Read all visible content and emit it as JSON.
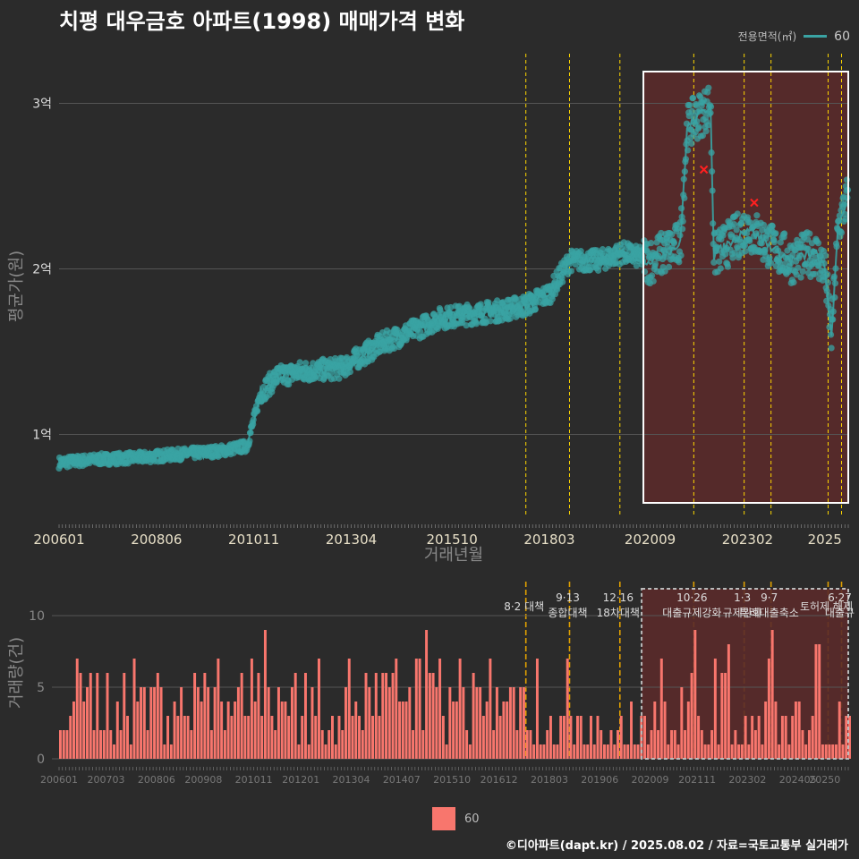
{
  "title": "치평 대우금호 아파트(1998) 매매가격 변화",
  "caption": "©디아파트(dapt.kr) / 2025.08.02 / 자료=국토교통부 실거래가",
  "legend_top": {
    "title": "전용면적(㎡)",
    "series": "60"
  },
  "legend_bottom": {
    "series": "60"
  },
  "colors": {
    "price": "#3aa3a3",
    "volume": "#f8766d",
    "policy": "#ffd700",
    "highlight": "#5a2a2a",
    "background": "#2b2b2b"
  },
  "chart_data": [
    {
      "type": "scatter",
      "xlabel": "거래년월",
      "ylabel": "평균가(원)",
      "x_range": [
        "2006-01",
        "2025-08"
      ],
      "ylim": [
        5000,
        33000
      ],
      "y_ticks": [
        {
          "v": 10000,
          "label": "1억"
        },
        {
          "v": 20000,
          "label": "2억"
        },
        {
          "v": 30000,
          "label": "3억"
        }
      ],
      "x_ticks": [
        "200601",
        "200806",
        "201011",
        "201304",
        "201510",
        "201803",
        "202009",
        "202302",
        "2025"
      ],
      "series": [
        {
          "name": "60"
        }
      ],
      "trend": [
        [
          "2006-01",
          8300
        ],
        [
          "2007-01",
          8500
        ],
        [
          "2008-01",
          8600
        ],
        [
          "2009-01",
          8800
        ],
        [
          "2010-01",
          9000
        ],
        [
          "2010-09",
          9300
        ],
        [
          "2011-01",
          12500
        ],
        [
          "2011-06",
          13500
        ],
        [
          "2012-01",
          13800
        ],
        [
          "2013-01",
          14000
        ],
        [
          "2014-01",
          15500
        ],
        [
          "2015-01",
          16500
        ],
        [
          "2015-06",
          17000
        ],
        [
          "2016-01",
          17200
        ],
        [
          "2017-01",
          17500
        ],
        [
          "2017-08",
          17800
        ],
        [
          "2018-03",
          18500
        ],
        [
          "2018-09",
          20500
        ],
        [
          "2019-06",
          20500
        ],
        [
          "2020-01",
          21000
        ],
        [
          "2020-09",
          20500
        ],
        [
          "2021-06",
          21500
        ],
        [
          "2021-08",
          28500
        ],
        [
          "2021-10",
          29000
        ],
        [
          "2022-01",
          29500
        ],
        [
          "2022-03",
          30000
        ],
        [
          "2022-04",
          20800
        ],
        [
          "2023-02",
          22500
        ],
        [
          "2023-08",
          21500
        ],
        [
          "2024-03",
          20500
        ],
        [
          "2024-10",
          21000
        ],
        [
          "2025-01",
          20000
        ],
        [
          "2025-03",
          16000
        ],
        [
          "2025-05",
          22500
        ],
        [
          "2025-08",
          24500
        ]
      ],
      "highlight_range": [
        "2020-07",
        "2025-08"
      ],
      "mean_markers": [
        [
          "2022-01",
          26000
        ],
        [
          "2023-04",
          24000
        ]
      ]
    },
    {
      "type": "bar",
      "xlabel": "",
      "ylabel": "거래량(건)",
      "ylim": [
        0,
        12.5
      ],
      "y_ticks": [
        0,
        5,
        10
      ],
      "x_ticks": [
        "200601",
        "200703",
        "200806",
        "200908",
        "201011",
        "201201",
        "201304",
        "201407",
        "201510",
        "201612",
        "201803",
        "201906",
        "202009",
        "202111",
        "202302",
        "202405",
        "20250"
      ],
      "series": [
        {
          "name": "60"
        }
      ],
      "highlight_range": [
        "2020-07",
        "2025-08"
      ],
      "policies": [
        {
          "date": "2017-08",
          "lines": [
            "8·2 대책"
          ]
        },
        {
          "date": "2018-09",
          "lines": [
            "9·13",
            "종합대책"
          ]
        },
        {
          "date": "2019-12",
          "lines": [
            "12·16",
            "18차대책"
          ]
        },
        {
          "date": "2021-10",
          "lines": [
            "10·26",
            "대출규제강화"
          ]
        },
        {
          "date": "2023-01",
          "lines": [
            "1·3",
            "규제완화"
          ]
        },
        {
          "date": "2023-09",
          "lines": [
            "9·7",
            "특례대출축소"
          ]
        },
        {
          "date": "2025-02",
          "lines": [
            "토허제 해제"
          ]
        },
        {
          "date": "2025-06",
          "lines": [
            "6·27",
            "대출규"
          ]
        }
      ]
    }
  ]
}
